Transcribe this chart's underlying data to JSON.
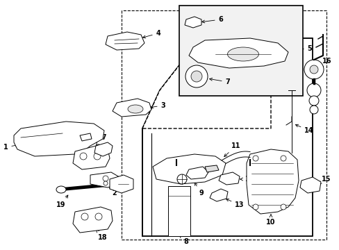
{
  "bg": "#ffffff",
  "lc": "#000000",
  "lw": 0.7,
  "fs": 7,
  "fw": "bold",
  "fig_w": 4.89,
  "fig_h": 3.6,
  "dpi": 100
}
